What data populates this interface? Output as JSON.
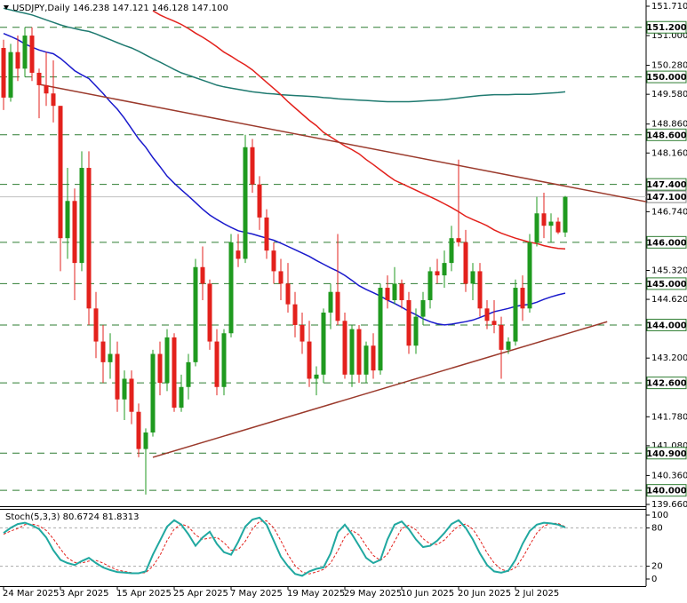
{
  "chart_data": {
    "type": "candlestick",
    "title": "USDJPY,Daily  146.238 147.121 146.128 147.100",
    "categories": [
      "24 Mar 2025",
      null,
      null,
      null,
      null,
      null,
      null,
      null,
      "3 Apr 2025",
      null,
      null,
      null,
      null,
      null,
      null,
      null,
      "15 Apr 2025",
      null,
      null,
      null,
      null,
      null,
      null,
      null,
      "25 Apr 2025",
      null,
      null,
      null,
      null,
      null,
      null,
      null,
      "7 May 2025",
      null,
      null,
      null,
      null,
      null,
      null,
      null,
      "19 May 2025",
      null,
      null,
      null,
      null,
      null,
      null,
      null,
      "29 May 2025",
      null,
      null,
      null,
      null,
      null,
      null,
      null,
      "10 Jun 2025",
      null,
      null,
      null,
      null,
      null,
      null,
      null,
      "20 Jun 2025",
      null,
      null,
      null,
      null,
      null,
      null,
      null,
      "2 Jul 2025",
      null,
      null,
      null,
      null,
      null,
      null,
      null
    ],
    "open": [
      150.7,
      149.5,
      150.6,
      150.2,
      151.0,
      150.1,
      149.8,
      149.6,
      149.3,
      146.1,
      147.0,
      145.5,
      147.8,
      144.4,
      143.6,
      143.1,
      143.3,
      142.2,
      142.7,
      141.9,
      141.0,
      141.4,
      143.3,
      142.6,
      143.7,
      142.0,
      142.5,
      143.1,
      145.4,
      145.0,
      143.6,
      142.5,
      143.8,
      145.8,
      145.6,
      148.3,
      147.4,
      146.6,
      145.8,
      145.3,
      145.0,
      144.5,
      144.0,
      143.6,
      142.7,
      142.8,
      144.3,
      144.8,
      144.1,
      142.8,
      143.9,
      142.8,
      143.5,
      142.9,
      144.9,
      144.6,
      145.0,
      144.6,
      143.5,
      144.2,
      144.6,
      145.3,
      145.2,
      145.5,
      146.1,
      146.0,
      145.0,
      145.3,
      144.4,
      144.1,
      144.0,
      143.4,
      143.6,
      144.9,
      144.4,
      146.0,
      146.7,
      146.4,
      146.5,
      146.238
    ],
    "high": [
      150.9,
      150.8,
      151.0,
      151.2,
      151.2,
      150.2,
      150.6,
      150.4,
      149.3,
      147.8,
      147.3,
      148.2,
      148.2,
      144.8,
      144.0,
      143.8,
      143.6,
      142.9,
      142.9,
      142.1,
      141.5,
      143.4,
      143.6,
      143.9,
      143.8,
      142.8,
      143.3,
      145.6,
      145.9,
      145.1,
      143.9,
      143.9,
      146.2,
      146.2,
      148.6,
      148.5,
      147.6,
      146.8,
      146.0,
      145.6,
      145.5,
      144.8,
      144.3,
      144.1,
      143.0,
      144.4,
      145.0,
      146.2,
      144.3,
      144.0,
      144.0,
      143.6,
      143.8,
      145.0,
      145.2,
      145.4,
      145.1,
      144.8,
      144.4,
      144.8,
      145.4,
      145.6,
      145.8,
      146.4,
      148.0,
      146.3,
      145.5,
      145.5,
      144.6,
      144.6,
      144.2,
      143.7,
      145.1,
      145.2,
      146.2,
      147.1,
      147.2,
      146.7,
      146.6,
      147.121
    ],
    "low": [
      149.2,
      149.4,
      149.9,
      150.0,
      149.9,
      149.0,
      149.3,
      148.9,
      145.3,
      145.6,
      144.6,
      145.3,
      144.0,
      143.2,
      142.6,
      142.7,
      141.9,
      141.7,
      141.6,
      140.8,
      139.9,
      141.3,
      142.3,
      142.4,
      141.9,
      141.9,
      142.2,
      143.0,
      144.6,
      143.4,
      142.3,
      142.3,
      143.7,
      145.4,
      145.5,
      147.2,
      146.3,
      145.6,
      145.0,
      144.6,
      144.3,
      143.7,
      143.3,
      142.5,
      142.3,
      142.6,
      143.9,
      144.0,
      142.7,
      142.5,
      142.6,
      142.6,
      142.7,
      142.8,
      144.4,
      144.5,
      144.4,
      143.3,
      143.3,
      144.0,
      144.4,
      145.0,
      144.9,
      145.3,
      145.9,
      144.8,
      144.6,
      144.2,
      143.9,
      143.8,
      142.7,
      143.3,
      143.5,
      144.1,
      144.3,
      145.9,
      146.1,
      146.0,
      146.2,
      146.128
    ],
    "close": [
      149.5,
      150.6,
      150.2,
      151.0,
      150.1,
      149.8,
      149.6,
      149.3,
      146.1,
      147.0,
      145.5,
      147.8,
      144.4,
      143.6,
      143.1,
      143.3,
      142.2,
      142.7,
      141.9,
      141.0,
      141.4,
      143.3,
      142.6,
      143.7,
      142.0,
      142.5,
      143.1,
      145.4,
      145.0,
      143.6,
      142.5,
      143.8,
      146.0,
      145.6,
      148.3,
      147.4,
      146.6,
      145.8,
      145.3,
      145.0,
      144.5,
      144.0,
      143.6,
      142.7,
      142.8,
      144.3,
      144.8,
      144.1,
      142.8,
      143.9,
      142.8,
      143.5,
      142.9,
      144.9,
      144.6,
      145.0,
      144.6,
      143.5,
      144.2,
      144.6,
      145.3,
      145.2,
      145.5,
      146.1,
      146.0,
      145.0,
      145.3,
      144.4,
      144.1,
      144.0,
      143.4,
      143.6,
      144.9,
      144.4,
      146.0,
      146.7,
      146.4,
      146.5,
      146.24,
      147.1
    ],
    "up_color": "#1f9a1f",
    "down_color": "#e3211c",
    "moving_averages": [
      {
        "color": "#1f7a70",
        "values": [
          151.66,
          151.62,
          151.58,
          151.54,
          151.5,
          151.44,
          151.38,
          151.32,
          151.26,
          151.21,
          151.17,
          151.13,
          151.1,
          151.04,
          150.97,
          150.9,
          150.83,
          150.76,
          150.7,
          150.62,
          150.53,
          150.44,
          150.36,
          150.27,
          150.18,
          150.1,
          150.04,
          149.98,
          149.92,
          149.86,
          149.8,
          149.76,
          149.73,
          149.7,
          149.67,
          149.64,
          149.62,
          149.6,
          149.59,
          149.57,
          149.56,
          149.55,
          149.54,
          149.53,
          149.52,
          149.5,
          149.49,
          149.47,
          149.46,
          149.45,
          149.44,
          149.43,
          149.42,
          149.41,
          149.4,
          149.4,
          149.4,
          149.4,
          149.41,
          149.42,
          149.43,
          149.44,
          149.45,
          149.47,
          149.49,
          149.51,
          149.53,
          149.55,
          149.56,
          149.57,
          149.57,
          149.57,
          149.58,
          149.58,
          149.58,
          149.59,
          149.6,
          149.61,
          149.62,
          149.64
        ]
      },
      {
        "color": "#e3211c",
        "values": [
          null,
          null,
          null,
          null,
          null,
          null,
          null,
          null,
          null,
          null,
          null,
          null,
          null,
          null,
          null,
          null,
          null,
          null,
          null,
          null,
          null,
          151.6,
          151.5,
          151.42,
          151.35,
          151.27,
          151.17,
          151.06,
          150.96,
          150.85,
          150.73,
          150.6,
          150.5,
          150.39,
          150.29,
          150.17,
          150.02,
          149.87,
          149.72,
          149.57,
          149.4,
          149.25,
          149.1,
          148.95,
          148.82,
          148.66,
          148.55,
          148.44,
          148.33,
          148.24,
          148.14,
          148.0,
          147.88,
          147.75,
          147.62,
          147.5,
          147.42,
          147.34,
          147.26,
          147.18,
          147.1,
          147.02,
          146.93,
          146.84,
          146.74,
          146.63,
          146.55,
          146.48,
          146.4,
          146.3,
          146.22,
          146.16,
          146.1,
          146.05,
          146.0,
          145.97,
          145.92,
          145.88,
          145.85,
          145.84
        ]
      },
      {
        "color": "#1a1acc",
        "values": [
          151.05,
          150.98,
          150.9,
          150.8,
          150.72,
          150.65,
          150.6,
          150.56,
          150.45,
          150.3,
          150.15,
          150.05,
          149.96,
          149.78,
          149.6,
          149.4,
          149.22,
          149.0,
          148.75,
          148.5,
          148.3,
          148.05,
          147.83,
          147.6,
          147.43,
          147.27,
          147.12,
          146.96,
          146.8,
          146.66,
          146.55,
          146.45,
          146.36,
          146.28,
          146.24,
          146.2,
          146.15,
          146.1,
          146.05,
          145.98,
          145.9,
          145.82,
          145.74,
          145.66,
          145.56,
          145.47,
          145.38,
          145.3,
          145.2,
          145.08,
          144.95,
          144.86,
          144.78,
          144.7,
          144.6,
          144.52,
          144.43,
          144.33,
          144.25,
          144.15,
          144.08,
          144.03,
          144.0,
          144.02,
          144.05,
          144.08,
          144.12,
          144.18,
          144.25,
          144.32,
          144.36,
          144.4,
          144.45,
          144.48,
          144.5,
          144.55,
          144.62,
          144.68,
          144.73,
          144.77
        ]
      }
    ],
    "trendlines": [
      {
        "color": "#9b3a2c",
        "points": [
          [
            5,
            149.82
          ],
          [
            90.4,
            146.98
          ]
        ]
      },
      {
        "color": "#9b3a2c",
        "points": [
          [
            21,
            140.8
          ],
          [
            84.9,
            144.08
          ]
        ]
      }
    ],
    "levels": [
      {
        "value": 151.2,
        "label": "151.200"
      },
      {
        "value": 150.0,
        "label": "150.000"
      },
      {
        "value": 148.6,
        "label": "148.600"
      },
      {
        "value": 147.4,
        "label": "147.400"
      },
      {
        "value": 146.0,
        "label": "146.000"
      },
      {
        "value": 145.0,
        "label": "145.000"
      },
      {
        "value": 144.0,
        "label": "144.000"
      },
      {
        "value": 142.6,
        "label": "142.600"
      },
      {
        "value": 140.9,
        "label": "140.900"
      },
      {
        "value": 140.0,
        "label": "140.000"
      }
    ],
    "level_color": "#2e7d32",
    "last_price": {
      "value": 147.1,
      "label": "147.100"
    },
    "ylim": [
      139.66,
      151.71
    ],
    "yticks": [
      {
        "value": 151.71,
        "label": "151.710"
      },
      {
        "value": 151.0,
        "label": "151.000"
      },
      {
        "value": 150.28,
        "label": "150.280"
      },
      {
        "value": 149.58,
        "label": "149.580"
      },
      {
        "value": 148.86,
        "label": "148.860"
      },
      {
        "value": 148.16,
        "label": "148.160"
      },
      {
        "value": 146.74,
        "label": "146.740"
      },
      {
        "value": 145.32,
        "label": "145.320"
      },
      {
        "value": 144.62,
        "label": "144.620"
      },
      {
        "value": 143.2,
        "label": "143.200"
      },
      {
        "value": 141.78,
        "label": "141.780"
      },
      {
        "value": 141.08,
        "label": "141.080"
      },
      {
        "value": 140.36,
        "label": "140.360"
      },
      {
        "value": 139.66,
        "label": "139.660"
      }
    ],
    "stochastic": {
      "label": "Stoch(5,3,3) 80.6724 81.8313",
      "ylim": [
        0,
        100
      ],
      "yticks": [
        100,
        80,
        20,
        0
      ],
      "levels": [
        80,
        20
      ],
      "main": {
        "color": "#20a8a0",
        "values": [
          72,
          80,
          86,
          88,
          84,
          78,
          65,
          45,
          30,
          25,
          22,
          28,
          33,
          25,
          18,
          14,
          11,
          10,
          9,
          9,
          12,
          38,
          60,
          82,
          92,
          85,
          70,
          52,
          65,
          74,
          55,
          42,
          38,
          58,
          82,
          93,
          96,
          85,
          60,
          35,
          20,
          8,
          5,
          12,
          16,
          18,
          40,
          73,
          85,
          70,
          52,
          33,
          25,
          30,
          62,
          85,
          90,
          78,
          62,
          50,
          52,
          60,
          72,
          86,
          92,
          80,
          62,
          40,
          22,
          12,
          10,
          13,
          30,
          55,
          75,
          85,
          88,
          87,
          85,
          80.6724
        ]
      },
      "signal": {
        "color": "#e3211c",
        "values": [
          70,
          75,
          79,
          85,
          86,
          83,
          76,
          63,
          47,
          33,
          26,
          25,
          28,
          29,
          25,
          19,
          14,
          12,
          10,
          9,
          10,
          20,
          37,
          60,
          78,
          86,
          82,
          69,
          62,
          64,
          65,
          57,
          45,
          46,
          59,
          78,
          90,
          91,
          80,
          60,
          38,
          21,
          11,
          8,
          11,
          15,
          25,
          44,
          66,
          76,
          69,
          52,
          37,
          29,
          39,
          59,
          79,
          84,
          77,
          63,
          55,
          54,
          61,
          73,
          83,
          86,
          78,
          61,
          41,
          25,
          15,
          12,
          18,
          33,
          53,
          72,
          83,
          87,
          87,
          81.8313
        ]
      }
    }
  }
}
